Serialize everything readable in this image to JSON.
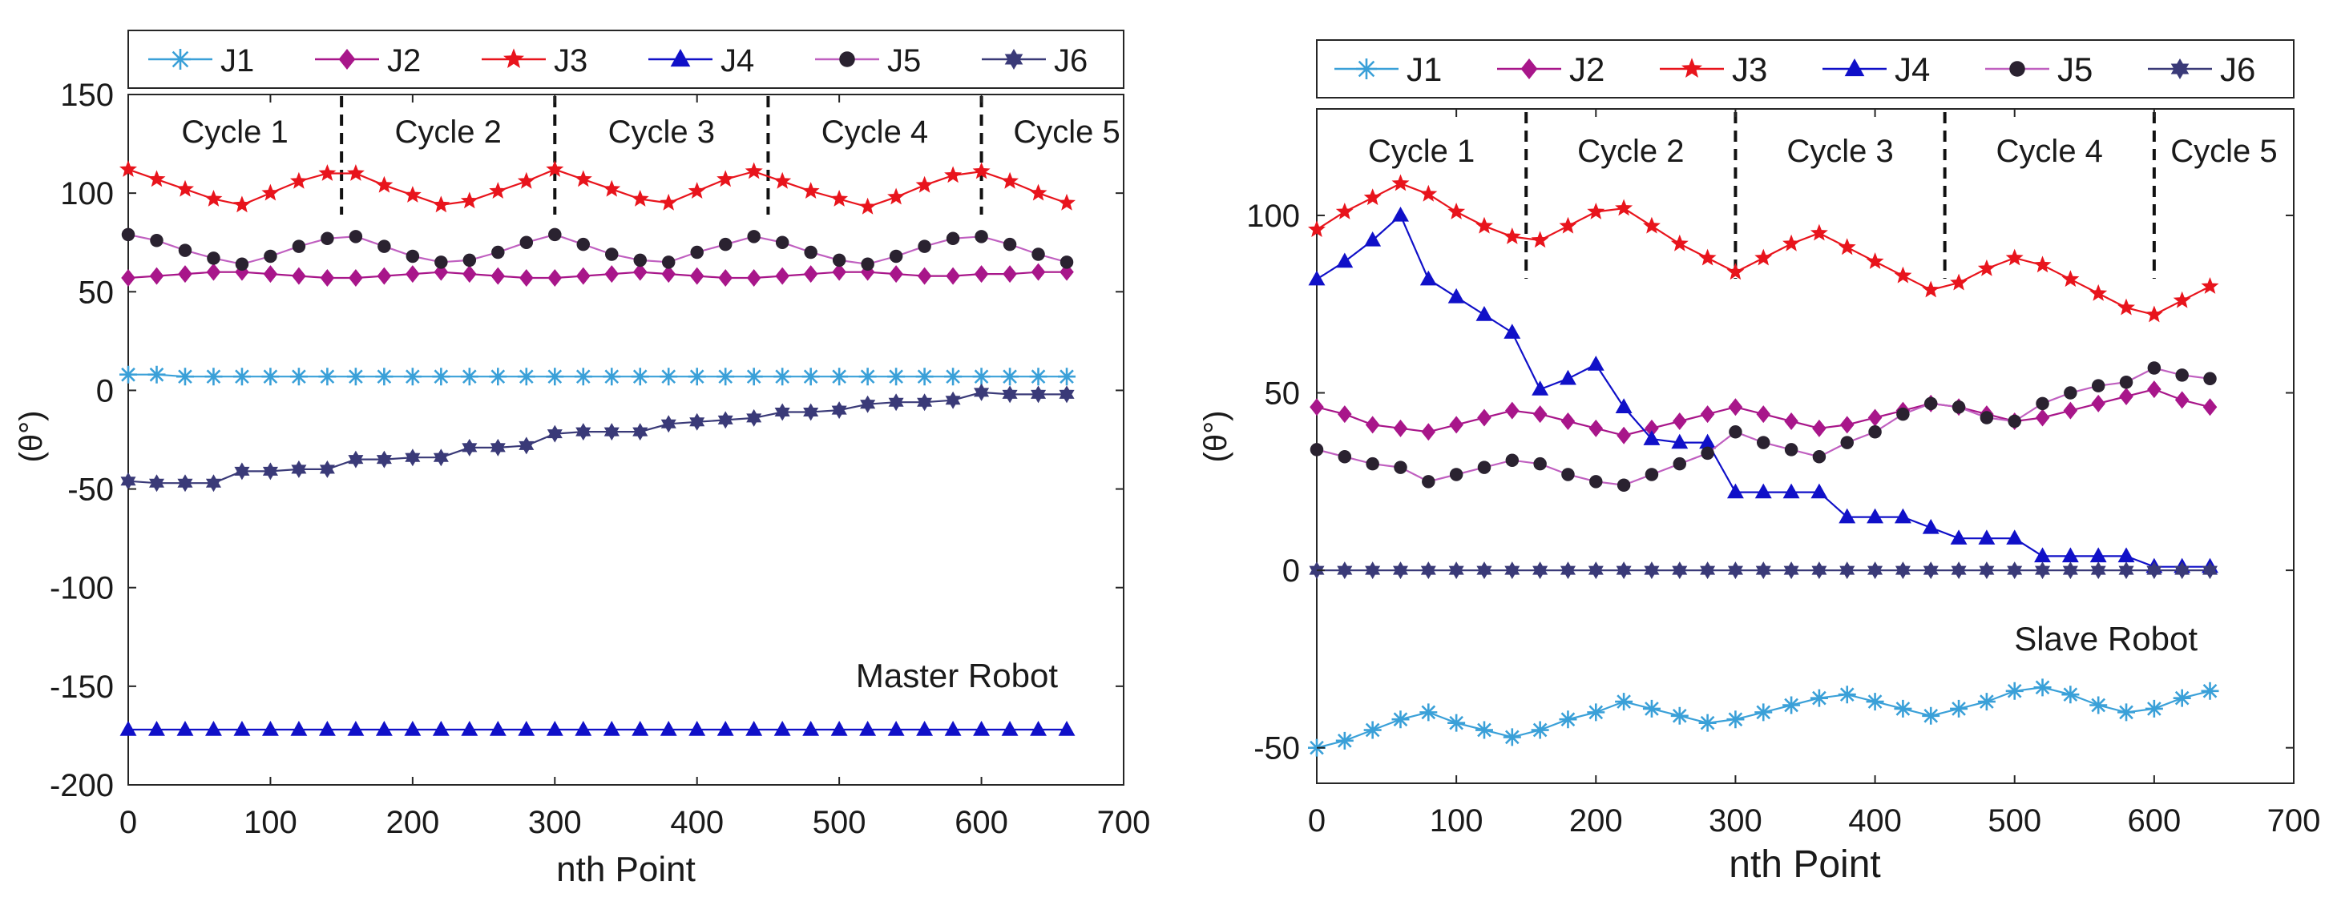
{
  "colors": {
    "J1": "#3aa0d8",
    "J2": "#a8168a",
    "J3": "#e8141c",
    "J4": "#1010c8",
    "J5": "#2a2230",
    "J5_line": "#c060c0",
    "J6": "#3a3a78",
    "axis": "#262626",
    "cycle_line": "#111111"
  },
  "chart_data": [
    {
      "type": "line",
      "panel": "left",
      "annotation": "Master Robot",
      "xlabel": "nth Point",
      "ylabel": "(θ°)",
      "xlim": [
        0,
        700
      ],
      "ylim": [
        -200,
        150
      ],
      "x_ticks": [
        "0",
        "100",
        "200",
        "300",
        "400",
        "500",
        "600",
        "700"
      ],
      "y_ticks": [
        "-200",
        "-150",
        "-100",
        "-50",
        "0",
        "50",
        "100",
        "150"
      ],
      "x_tick_values": [
        0,
        100,
        200,
        300,
        400,
        500,
        600,
        700
      ],
      "y_tick_values": [
        -200,
        -150,
        -100,
        -50,
        0,
        50,
        100,
        150
      ],
      "legend": [
        "J1",
        "J2",
        "J3",
        "J4",
        "J5",
        "J6"
      ],
      "cycle_boundaries": [
        150,
        300,
        450,
        600
      ],
      "cycles": [
        {
          "label": "Cycle 1",
          "x": 75
        },
        {
          "label": "Cycle 2",
          "x": 225
        },
        {
          "label": "Cycle 3",
          "x": 375
        },
        {
          "label": "Cycle 4",
          "x": 525
        },
        {
          "label": "Cycle 5",
          "x": 660
        }
      ],
      "x": [
        0,
        20,
        40,
        60,
        80,
        100,
        120,
        140,
        160,
        180,
        200,
        220,
        240,
        260,
        280,
        300,
        320,
        340,
        360,
        380,
        400,
        420,
        440,
        460,
        480,
        500,
        520,
        540,
        560,
        580,
        600,
        620,
        640,
        660
      ],
      "series": [
        {
          "name": "J1",
          "marker": "star",
          "values": [
            8,
            8,
            7,
            7,
            7,
            7,
            7,
            7,
            7,
            7,
            7,
            7,
            7,
            7,
            7,
            7,
            7,
            7,
            7,
            7,
            7,
            7,
            7,
            7,
            7,
            7,
            7,
            7,
            7,
            7,
            7,
            7,
            7,
            7
          ]
        },
        {
          "name": "J2",
          "marker": "diamond",
          "values": [
            57,
            58,
            59,
            60,
            60,
            59,
            58,
            57,
            57,
            58,
            59,
            60,
            59,
            58,
            57,
            57,
            58,
            59,
            60,
            59,
            58,
            57,
            57,
            58,
            59,
            60,
            60,
            59,
            58,
            58,
            59,
            59,
            60,
            60
          ]
        },
        {
          "name": "J3",
          "marker": "star5",
          "values": [
            112,
            107,
            102,
            97,
            94,
            100,
            106,
            110,
            110,
            104,
            99,
            94,
            96,
            101,
            106,
            112,
            107,
            102,
            97,
            95,
            101,
            107,
            111,
            106,
            101,
            97,
            93,
            98,
            104,
            109,
            111,
            106,
            100,
            95
          ]
        },
        {
          "name": "J4",
          "marker": "triangle",
          "values": [
            -172,
            -172,
            -172,
            -172,
            -172,
            -172,
            -172,
            -172,
            -172,
            -172,
            -172,
            -172,
            -172,
            -172,
            -172,
            -172,
            -172,
            -172,
            -172,
            -172,
            -172,
            -172,
            -172,
            -172,
            -172,
            -172,
            -172,
            -172,
            -172,
            -172,
            -172,
            -172,
            -172,
            -172
          ]
        },
        {
          "name": "J5",
          "marker": "circle",
          "values": [
            79,
            76,
            71,
            67,
            64,
            68,
            73,
            77,
            78,
            73,
            68,
            65,
            66,
            70,
            75,
            79,
            74,
            69,
            66,
            65,
            70,
            74,
            78,
            75,
            70,
            66,
            64,
            68,
            73,
            77,
            78,
            74,
            69,
            65
          ]
        },
        {
          "name": "J6",
          "marker": "hexagram",
          "values": [
            -46,
            -47,
            -47,
            -47,
            -41,
            -41,
            -40,
            -40,
            -35,
            -35,
            -34,
            -34,
            -29,
            -29,
            -28,
            -22,
            -21,
            -21,
            -21,
            -17,
            -16,
            -15,
            -14,
            -11,
            -11,
            -10,
            -7,
            -6,
            -6,
            -5,
            -1,
            -2,
            -2,
            -2
          ]
        }
      ]
    },
    {
      "type": "line",
      "panel": "right",
      "annotation": "Slave Robot",
      "xlabel": "nth Point",
      "ylabel": "(θ°)",
      "xlim": [
        0,
        700
      ],
      "ylim": [
        -60,
        130
      ],
      "x_ticks": [
        "0",
        "100",
        "200",
        "300",
        "400",
        "500",
        "600",
        "700"
      ],
      "y_ticks": [
        "-50",
        "0",
        "50",
        "100"
      ],
      "x_tick_values": [
        0,
        100,
        200,
        300,
        400,
        500,
        600,
        700
      ],
      "y_tick_values": [
        -50,
        0,
        50,
        100
      ],
      "legend": [
        "J1",
        "J2",
        "J3",
        "J4",
        "J5",
        "J6"
      ],
      "cycle_boundaries": [
        150,
        300,
        450,
        600
      ],
      "cycles": [
        {
          "label": "Cycle 1",
          "x": 75
        },
        {
          "label": "Cycle 2",
          "x": 225
        },
        {
          "label": "Cycle 3",
          "x": 375
        },
        {
          "label": "Cycle 4",
          "x": 525
        },
        {
          "label": "Cycle 5",
          "x": 650
        }
      ],
      "x": [
        0,
        20,
        40,
        60,
        80,
        100,
        120,
        140,
        160,
        180,
        200,
        220,
        240,
        260,
        280,
        300,
        320,
        340,
        360,
        380,
        400,
        420,
        440,
        460,
        480,
        500,
        520,
        540,
        560,
        580,
        600,
        620,
        640
      ],
      "series": [
        {
          "name": "J1",
          "marker": "star",
          "values": [
            -50,
            -48,
            -45,
            -42,
            -40,
            -43,
            -45,
            -47,
            -45,
            -42,
            -40,
            -37,
            -39,
            -41,
            -43,
            -42,
            -40,
            -38,
            -36,
            -35,
            -37,
            -39,
            -41,
            -39,
            -37,
            -34,
            -33,
            -35,
            -38,
            -40,
            -39,
            -36,
            -34
          ]
        },
        {
          "name": "J2",
          "marker": "diamond",
          "values": [
            46,
            44,
            41,
            40,
            39,
            41,
            43,
            45,
            44,
            42,
            40,
            38,
            40,
            42,
            44,
            46,
            44,
            42,
            40,
            41,
            43,
            45,
            47,
            46,
            44,
            42,
            43,
            45,
            47,
            49,
            51,
            48,
            46
          ]
        },
        {
          "name": "J3",
          "marker": "star5",
          "values": [
            96,
            101,
            105,
            109,
            106,
            101,
            97,
            94,
            93,
            97,
            101,
            102,
            97,
            92,
            88,
            84,
            88,
            92,
            95,
            91,
            87,
            83,
            79,
            81,
            85,
            88,
            86,
            82,
            78,
            74,
            72,
            76,
            80
          ]
        },
        {
          "name": "J4",
          "marker": "triangle",
          "values": [
            82,
            87,
            93,
            100,
            82,
            77,
            72,
            67,
            51,
            54,
            58,
            46,
            37,
            36,
            36,
            22,
            22,
            22,
            22,
            15,
            15,
            15,
            12,
            9,
            9,
            9,
            4,
            4,
            4,
            4,
            1,
            1,
            1
          ]
        },
        {
          "name": "J5",
          "marker": "circle",
          "values": [
            34,
            32,
            30,
            29,
            25,
            27,
            29,
            31,
            30,
            27,
            25,
            24,
            27,
            30,
            33,
            39,
            36,
            34,
            32,
            36,
            39,
            44,
            47,
            46,
            43,
            42,
            47,
            50,
            52,
            53,
            57,
            55,
            54
          ]
        },
        {
          "name": "J6",
          "marker": "hexagram",
          "values": [
            0,
            0,
            0,
            0,
            0,
            0,
            0,
            0,
            0,
            0,
            0,
            0,
            0,
            0,
            0,
            0,
            0,
            0,
            0,
            0,
            0,
            0,
            0,
            0,
            0,
            0,
            0,
            0,
            0,
            0,
            0,
            0,
            0
          ]
        }
      ]
    }
  ]
}
